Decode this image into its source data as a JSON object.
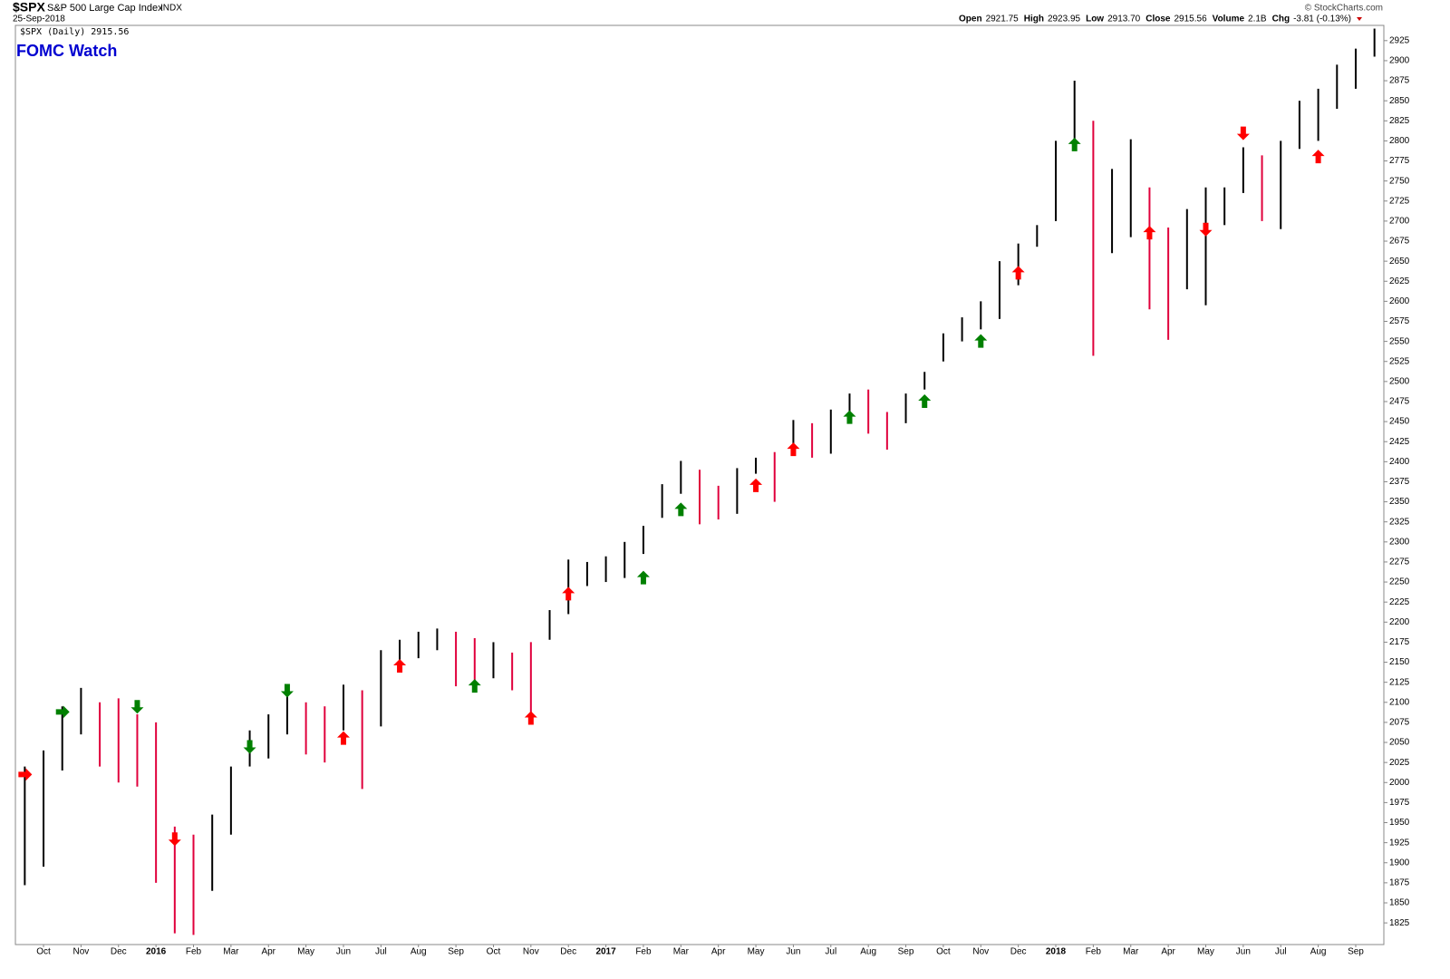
{
  "chart_data": {
    "type": "ohlc_range",
    "symbol": "$SPX",
    "name": "S&P 500 Large Cap Index",
    "exchange": "INDX",
    "date": "25-Sep-2018",
    "credit": "© StockCharts.com",
    "quote": [
      {
        "label": "Open",
        "value": "2921.75"
      },
      {
        "label": "High",
        "value": "2923.95"
      },
      {
        "label": "Low",
        "value": "2913.70"
      },
      {
        "label": "Close",
        "value": "2915.56"
      },
      {
        "label": "Volume",
        "value": "2.1B"
      },
      {
        "label": "Chg",
        "value": "-3.81 (-0.13%)"
      }
    ],
    "legend": "$SPX (Daily) 2915.56",
    "annotation": "FOMC Watch",
    "categories": [
      null,
      "Oct",
      null,
      "Nov",
      null,
      "Dec",
      null,
      "2016",
      null,
      "Feb",
      null,
      "Mar",
      null,
      "Apr",
      null,
      "May",
      null,
      "Jun",
      null,
      "Jul",
      null,
      "Aug",
      null,
      "Sep",
      null,
      "Oct",
      null,
      "Nov",
      null,
      "Dec",
      null,
      "2017",
      null,
      "Feb",
      null,
      "Mar",
      null,
      "Apr",
      null,
      "May",
      null,
      "Jun",
      null,
      "Jul",
      null,
      "Aug",
      null,
      "Sep",
      null,
      "Oct",
      null,
      "Nov",
      null,
      "Dec",
      null,
      "2018",
      null,
      "Feb",
      null,
      "Mar",
      null,
      "Apr",
      null,
      "May",
      null,
      "Jun",
      null,
      "Jul",
      null,
      "Aug",
      null,
      "Sep",
      null
    ],
    "low": [
      1872,
      1895,
      2015,
      2060,
      2020,
      2000,
      1995,
      1875,
      1812,
      1810,
      1865,
      1935,
      2020,
      2030,
      2060,
      2035,
      2025,
      2065,
      1992,
      2070,
      2150,
      2155,
      2165,
      2120,
      2125,
      2130,
      2115,
      2084,
      2178,
      2210,
      2245,
      2250,
      2255,
      2285,
      2330,
      2360,
      2322,
      2328,
      2335,
      2385,
      2350,
      2420,
      2405,
      2410,
      2460,
      2435,
      2415,
      2448,
      2490,
      2525,
      2550,
      2565,
      2578,
      2620,
      2668,
      2700,
      2790,
      2532,
      2660,
      2680,
      2590,
      2552,
      2615,
      2595,
      2695,
      2735,
      2700,
      2690,
      2790,
      2800,
      2840,
      2865,
      2905
    ],
    "high": [
      2020,
      2040,
      2095,
      2118,
      2100,
      2105,
      2085,
      2075,
      1945,
      1935,
      1960,
      2020,
      2065,
      2085,
      2115,
      2100,
      2095,
      2122,
      2115,
      2165,
      2178,
      2188,
      2192,
      2188,
      2180,
      2175,
      2162,
      2175,
      2215,
      2278,
      2275,
      2282,
      2300,
      2320,
      2372,
      2401,
      2390,
      2370,
      2392,
      2405,
      2412,
      2452,
      2448,
      2465,
      2485,
      2490,
      2462,
      2485,
      2512,
      2560,
      2580,
      2600,
      2650,
      2672,
      2695,
      2800,
      2875,
      2825,
      2765,
      2802,
      2742,
      2692,
      2715,
      2742,
      2742,
      2792,
      2782,
      2800,
      2850,
      2865,
      2895,
      2915,
      2940
    ],
    "up_color": "#000000",
    "down_color": "#e0003c",
    "fomc_prices": [
      2010,
      null,
      2088,
      null,
      null,
      null,
      2095,
      null,
      1930,
      null,
      null,
      null,
      2045,
      null,
      2115,
      null,
      null,
      2055,
      null,
      null,
      2145,
      null,
      null,
      null,
      2120,
      null,
      null,
      2080,
      null,
      2235,
      null,
      null,
      null,
      2255,
      null,
      2340,
      null,
      null,
      null,
      2370,
      null,
      2415,
      null,
      null,
      2455,
      null,
      null,
      null,
      2475,
      null,
      null,
      2550,
      null,
      2635,
      null,
      null,
      2795,
      null,
      null,
      null,
      2685,
      null,
      null,
      2690,
      null,
      2810,
      null,
      null,
      null,
      2780,
      null,
      null,
      null
    ],
    "fomc_shapes": [
      "right",
      null,
      "right",
      null,
      null,
      null,
      "down",
      null,
      "down",
      null,
      null,
      null,
      "down",
      null,
      "down",
      null,
      null,
      "up",
      null,
      null,
      "up",
      null,
      null,
      null,
      "up",
      null,
      null,
      "up",
      null,
      "up",
      null,
      null,
      null,
      "up",
      null,
      "up",
      null,
      null,
      null,
      "up",
      null,
      "up",
      null,
      null,
      "up",
      null,
      null,
      null,
      "up",
      null,
      null,
      "up",
      null,
      "up",
      null,
      null,
      "up",
      null,
      null,
      null,
      "up",
      null,
      null,
      "down",
      null,
      "down",
      null,
      null,
      null,
      "up",
      null,
      null,
      null
    ],
    "fomc_colors": [
      "#ff0000",
      null,
      "#008000",
      null,
      null,
      null,
      "#008000",
      null,
      "#ff0000",
      null,
      null,
      null,
      "#008000",
      null,
      "#008000",
      null,
      null,
      "#ff0000",
      null,
      null,
      "#ff0000",
      null,
      null,
      null,
      "#008000",
      null,
      null,
      "#ff0000",
      null,
      "#ff0000",
      null,
      null,
      null,
      "#008000",
      null,
      "#008000",
      null,
      null,
      null,
      "#ff0000",
      null,
      "#ff0000",
      null,
      null,
      "#008000",
      null,
      null,
      null,
      "#008000",
      null,
      null,
      "#008000",
      null,
      "#ff0000",
      null,
      null,
      "#008000",
      null,
      null,
      null,
      "#ff0000",
      null,
      null,
      "#ff0000",
      null,
      "#ff0000",
      null,
      null,
      null,
      "#ff0000",
      null,
      null,
      null
    ],
    "ylim": [
      1798,
      2944
    ],
    "yticks": [
      1825,
      1850,
      1875,
      1900,
      1925,
      1950,
      1975,
      2000,
      2025,
      2050,
      2075,
      2100,
      2125,
      2150,
      2175,
      2200,
      2225,
      2250,
      2275,
      2300,
      2325,
      2350,
      2375,
      2400,
      2425,
      2450,
      2475,
      2500,
      2525,
      2550,
      2575,
      2600,
      2625,
      2650,
      2675,
      2700,
      2725,
      2750,
      2775,
      2800,
      2825,
      2850,
      2875,
      2900,
      2925
    ]
  }
}
